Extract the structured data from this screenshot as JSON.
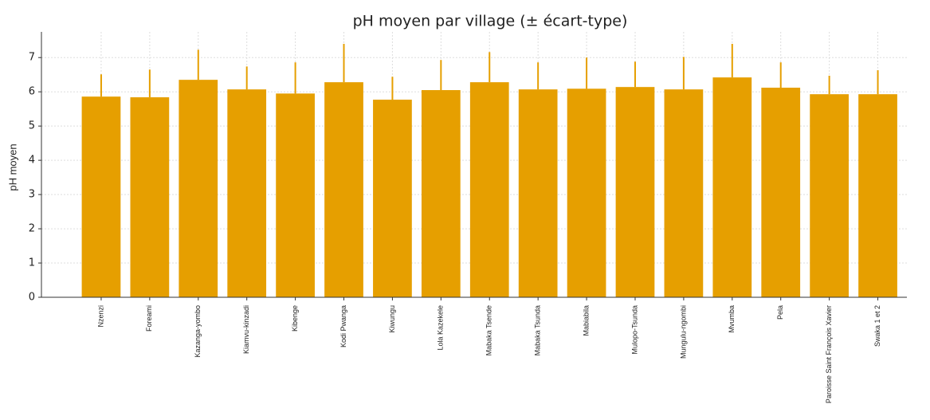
{
  "chart_data": {
    "type": "bar",
    "title": "pH moyen par village (± écart-type)",
    "ylabel": "pH moyen",
    "categories": [
      "Nzenzi",
      "Foreami",
      "Kazanga-yombo",
      "Kiamvu-kinzadi",
      "Kibenge",
      "Kodi Pwanga",
      "Kiwungu",
      "Lola Kazekele",
      "Mabaka Tsende",
      "Mabaka Tsunda",
      "Mabiabila",
      "Mulopo-Tsunda",
      "Mungulu-ngombi",
      "Mvumba",
      "Pela",
      "Paroisse Saint François Xavier",
      "Swaka 1 et 2"
    ],
    "values": [
      5.86,
      5.84,
      6.35,
      6.07,
      5.95,
      6.28,
      5.77,
      6.05,
      6.28,
      6.07,
      6.09,
      6.14,
      6.07,
      6.42,
      6.12,
      5.93,
      5.93
    ],
    "errors": [
      0.65,
      0.81,
      0.88,
      0.67,
      0.91,
      1.12,
      0.67,
      0.88,
      0.88,
      0.79,
      0.91,
      0.74,
      0.95,
      0.98,
      0.74,
      0.54,
      0.7
    ],
    "color": "#e69f00",
    "ylim": [
      0,
      7.75
    ],
    "yticks": [
      0,
      1,
      2,
      3,
      4,
      5,
      6,
      7
    ],
    "grid": true
  }
}
